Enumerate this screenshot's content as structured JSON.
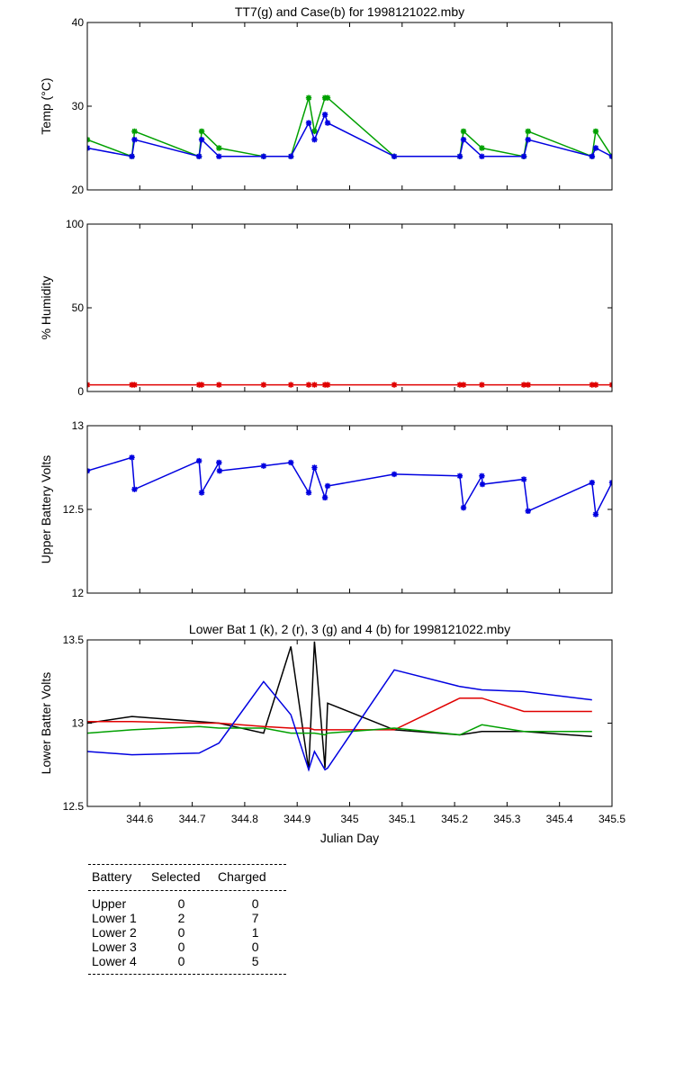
{
  "chart_data": [
    {
      "type": "line",
      "title": "TT7(g) and Case(b) for 1998121022.mby",
      "xlabel": "",
      "ylabel": "Temp  (°C)",
      "xlim": [
        344.5,
        345.5
      ],
      "ylim": [
        20,
        40
      ],
      "yticks": [
        20,
        30,
        40
      ],
      "grid": false,
      "series": [
        {
          "name": "TT7",
          "color": "#00a000",
          "marker": true,
          "x": [
            344.5,
            344.585,
            344.59,
            344.713,
            344.718,
            344.751,
            344.836,
            344.888,
            344.922,
            344.933,
            344.953,
            344.958,
            345.085,
            345.21,
            345.217,
            345.252,
            345.332,
            345.34,
            345.462,
            345.469,
            345.5
          ],
          "y": [
            26,
            24,
            27,
            24,
            27,
            25,
            24,
            24,
            31,
            27,
            31,
            31,
            24,
            24,
            27,
            25,
            24,
            27,
            24,
            27,
            24
          ]
        },
        {
          "name": "Case",
          "color": "#0000e0",
          "marker": true,
          "x": [
            344.5,
            344.585,
            344.59,
            344.713,
            344.718,
            344.751,
            344.836,
            344.888,
            344.922,
            344.933,
            344.953,
            344.958,
            345.085,
            345.21,
            345.217,
            345.252,
            345.332,
            345.34,
            345.462,
            345.469,
            345.5
          ],
          "y": [
            25,
            24,
            26,
            24,
            26,
            24,
            24,
            24,
            28,
            26,
            29,
            28,
            24,
            24,
            26,
            24,
            24,
            26,
            24,
            25,
            24
          ]
        }
      ]
    },
    {
      "type": "line",
      "title": "",
      "xlabel": "",
      "ylabel": "% Humidity",
      "xlim": [
        344.5,
        345.5
      ],
      "ylim": [
        0,
        100
      ],
      "yticks": [
        0,
        50,
        100
      ],
      "grid": false,
      "series": [
        {
          "name": "",
          "color": "#e00000",
          "marker": true,
          "x": [
            344.5,
            344.585,
            344.59,
            344.713,
            344.718,
            344.751,
            344.836,
            344.888,
            344.922,
            344.933,
            344.953,
            344.958,
            345.085,
            345.21,
            345.217,
            345.252,
            345.332,
            345.34,
            345.462,
            345.469,
            345.5
          ],
          "y": [
            4,
            4,
            4,
            4,
            4,
            4,
            4,
            4,
            4,
            4,
            4,
            4,
            4,
            4,
            4,
            4,
            4,
            4,
            4,
            4,
            4
          ]
        }
      ]
    },
    {
      "type": "line",
      "title": "",
      "xlabel": "",
      "ylabel": "Upper Battery Volts",
      "xlim": [
        344.5,
        345.5
      ],
      "ylim": [
        12,
        13
      ],
      "yticks": [
        12,
        12.5,
        13
      ],
      "grid": false,
      "series": [
        {
          "name": "",
          "color": "#0000e0",
          "marker": true,
          "x": [
            344.5,
            344.585,
            344.59,
            344.713,
            344.718,
            344.751,
            344.752,
            344.836,
            344.888,
            344.922,
            344.933,
            344.953,
            344.958,
            345.085,
            345.21,
            345.217,
            345.252,
            345.253,
            345.332,
            345.34,
            345.462,
            345.469,
            345.5
          ],
          "y": [
            12.73,
            12.81,
            12.62,
            12.79,
            12.6,
            12.78,
            12.73,
            12.76,
            12.78,
            12.6,
            12.75,
            12.57,
            12.64,
            12.71,
            12.7,
            12.51,
            12.7,
            12.65,
            12.68,
            12.49,
            12.66,
            12.47,
            12.66
          ]
        }
      ]
    },
    {
      "type": "line",
      "title": "Lower Bat 1 (k), 2 (r), 3 (g) and 4 (b) for 1998121022.mby",
      "xlabel": "Julian Day",
      "ylabel": "Lower Batter Volts",
      "xlim": [
        344.5,
        345.5
      ],
      "ylim": [
        12.5,
        13.5
      ],
      "yticks": [
        12.5,
        13,
        13.5
      ],
      "xticks": [
        344.6,
        344.7,
        344.8,
        344.9,
        345,
        345.1,
        345.2,
        345.3,
        345.4,
        345.5
      ],
      "xticklabels": [
        "344.6",
        "344.7",
        "344.8",
        "344.9",
        "345",
        "345.1",
        "345.2",
        "345.3",
        "345.4",
        "345.5"
      ],
      "grid": false,
      "series": [
        {
          "name": "1",
          "color": "#000000",
          "marker": false,
          "x": [
            344.5,
            344.585,
            344.713,
            344.751,
            344.836,
            344.888,
            344.922,
            344.933,
            344.953,
            344.958,
            345.085,
            345.21,
            345.252,
            345.332,
            345.462
          ],
          "y": [
            13.0,
            13.04,
            13.01,
            13.0,
            12.94,
            13.46,
            12.72,
            13.49,
            12.73,
            13.12,
            12.96,
            12.93,
            12.95,
            12.95,
            12.92
          ]
        },
        {
          "name": "2",
          "color": "#e00000",
          "marker": false,
          "x": [
            344.5,
            344.585,
            344.713,
            344.751,
            344.836,
            344.888,
            344.922,
            344.933,
            344.953,
            344.958,
            345.085,
            345.21,
            345.252,
            345.332,
            345.462
          ],
          "y": [
            13.01,
            13.01,
            13.0,
            13.0,
            12.98,
            12.97,
            12.97,
            12.96,
            12.96,
            12.96,
            12.96,
            13.15,
            13.15,
            13.07,
            13.07
          ]
        },
        {
          "name": "3",
          "color": "#00a000",
          "marker": false,
          "x": [
            344.5,
            344.585,
            344.713,
            344.751,
            344.836,
            344.888,
            344.922,
            344.933,
            344.953,
            344.958,
            345.085,
            345.21,
            345.252,
            345.332,
            345.462
          ],
          "y": [
            12.94,
            12.96,
            12.98,
            12.97,
            12.97,
            12.94,
            12.94,
            12.94,
            12.93,
            12.94,
            12.97,
            12.93,
            12.99,
            12.95,
            12.95
          ]
        },
        {
          "name": "4",
          "color": "#0000e0",
          "marker": false,
          "x": [
            344.5,
            344.585,
            344.713,
            344.751,
            344.836,
            344.888,
            344.922,
            344.933,
            344.953,
            344.958,
            345.085,
            345.21,
            345.252,
            345.332,
            345.462
          ],
          "y": [
            12.83,
            12.81,
            12.82,
            12.88,
            13.25,
            13.05,
            12.72,
            12.83,
            12.72,
            12.73,
            13.32,
            13.22,
            13.2,
            13.19,
            13.14
          ]
        }
      ]
    }
  ],
  "summary_table": {
    "headers": [
      "Battery",
      "Selected",
      "Charged"
    ],
    "rows": [
      [
        "Upper",
        "0",
        "0"
      ],
      [
        "Lower 1",
        "2",
        "7"
      ],
      [
        "Lower 2",
        "0",
        "1"
      ],
      [
        "Lower 3",
        "0",
        "0"
      ],
      [
        "Lower 4",
        "0",
        "5"
      ]
    ]
  }
}
